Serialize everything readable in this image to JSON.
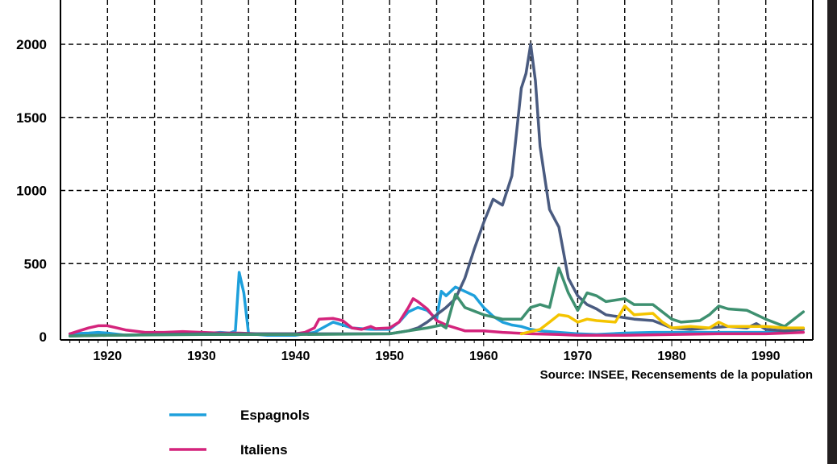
{
  "chart_data": {
    "type": "line",
    "source": "Source: INSEE, Recensements de la population",
    "xlim": [
      1915,
      1995
    ],
    "ylim": [
      0,
      2300
    ],
    "x_ticks": [
      1920,
      1930,
      1940,
      1950,
      1960,
      1970,
      1980,
      1990
    ],
    "y_ticks": [
      0,
      500,
      1000,
      1500,
      2000
    ],
    "grid": true,
    "legend_position": "bottom-left",
    "series": [
      {
        "name": "Espagnols",
        "color": "#1ea0dc",
        "points": [
          [
            1916,
            20
          ],
          [
            1918,
            25
          ],
          [
            1919,
            30
          ],
          [
            1920,
            25
          ],
          [
            1922,
            10
          ],
          [
            1925,
            15
          ],
          [
            1928,
            20
          ],
          [
            1930,
            20
          ],
          [
            1932,
            30
          ],
          [
            1933,
            25
          ],
          [
            1933.6,
            40
          ],
          [
            1934,
            440
          ],
          [
            1934.5,
            300
          ],
          [
            1935,
            20
          ],
          [
            1937,
            10
          ],
          [
            1940,
            10
          ],
          [
            1942,
            30
          ],
          [
            1944,
            100
          ],
          [
            1946,
            60
          ],
          [
            1948,
            50
          ],
          [
            1950,
            50
          ],
          [
            1951,
            100
          ],
          [
            1952,
            170
          ],
          [
            1953,
            200
          ],
          [
            1954,
            180
          ],
          [
            1955,
            120
          ],
          [
            1955.5,
            310
          ],
          [
            1956,
            280
          ],
          [
            1957,
            340
          ],
          [
            1958,
            310
          ],
          [
            1959,
            280
          ],
          [
            1960,
            200
          ],
          [
            1961,
            140
          ],
          [
            1962,
            100
          ],
          [
            1963,
            80
          ],
          [
            1964,
            70
          ],
          [
            1965,
            50
          ],
          [
            1966,
            40
          ],
          [
            1968,
            30
          ],
          [
            1970,
            20
          ],
          [
            1972,
            15
          ],
          [
            1975,
            25
          ],
          [
            1978,
            30
          ],
          [
            1980,
            30
          ],
          [
            1985,
            30
          ],
          [
            1990,
            30
          ],
          [
            1994,
            50
          ]
        ]
      },
      {
        "name": "Italiens",
        "color": "#d4247c",
        "points": [
          [
            1916,
            20
          ],
          [
            1917,
            40
          ],
          [
            1918,
            60
          ],
          [
            1919,
            75
          ],
          [
            1920,
            75
          ],
          [
            1921,
            60
          ],
          [
            1922,
            45
          ],
          [
            1924,
            30
          ],
          [
            1926,
            30
          ],
          [
            1928,
            35
          ],
          [
            1930,
            30
          ],
          [
            1932,
            25
          ],
          [
            1934,
            25
          ],
          [
            1936,
            20
          ],
          [
            1940,
            20
          ],
          [
            1941,
            30
          ],
          [
            1942,
            60
          ],
          [
            1942.5,
            120
          ],
          [
            1944,
            125
          ],
          [
            1945,
            110
          ],
          [
            1946,
            60
          ],
          [
            1947,
            50
          ],
          [
            1948,
            70
          ],
          [
            1948.5,
            55
          ],
          [
            1950,
            60
          ],
          [
            1951,
            100
          ],
          [
            1952,
            200
          ],
          [
            1952.5,
            260
          ],
          [
            1953,
            240
          ],
          [
            1954,
            190
          ],
          [
            1955,
            110
          ],
          [
            1956,
            80
          ],
          [
            1958,
            40
          ],
          [
            1960,
            40
          ],
          [
            1962,
            30
          ],
          [
            1965,
            20
          ],
          [
            1968,
            15
          ],
          [
            1970,
            10
          ],
          [
            1975,
            10
          ],
          [
            1980,
            15
          ],
          [
            1985,
            20
          ],
          [
            1990,
            20
          ],
          [
            1994,
            30
          ]
        ]
      },
      {
        "name": "",
        "color": "#4a5b80",
        "points": [
          [
            1916,
            5
          ],
          [
            1920,
            10
          ],
          [
            1930,
            20
          ],
          [
            1940,
            20
          ],
          [
            1950,
            20
          ],
          [
            1952,
            40
          ],
          [
            1953,
            60
          ],
          [
            1954,
            100
          ],
          [
            1955,
            150
          ],
          [
            1956,
            200
          ],
          [
            1957,
            260
          ],
          [
            1958,
            400
          ],
          [
            1959,
            600
          ],
          [
            1960,
            780
          ],
          [
            1961,
            940
          ],
          [
            1962,
            900
          ],
          [
            1963,
            1100
          ],
          [
            1964,
            1700
          ],
          [
            1964.5,
            1800
          ],
          [
            1965,
            2000
          ],
          [
            1965.5,
            1750
          ],
          [
            1966,
            1300
          ],
          [
            1967,
            870
          ],
          [
            1968,
            750
          ],
          [
            1969,
            400
          ],
          [
            1970,
            280
          ],
          [
            1971,
            220
          ],
          [
            1972,
            190
          ],
          [
            1973,
            150
          ],
          [
            1975,
            130
          ],
          [
            1976,
            120
          ],
          [
            1978,
            110
          ],
          [
            1980,
            60
          ],
          [
            1982,
            50
          ],
          [
            1984,
            60
          ],
          [
            1986,
            70
          ],
          [
            1988,
            60
          ],
          [
            1989,
            90
          ],
          [
            1990,
            50
          ],
          [
            1992,
            40
          ],
          [
            1994,
            50
          ]
        ]
      },
      {
        "name": "",
        "color": "#3e9070",
        "points": [
          [
            1916,
            5
          ],
          [
            1920,
            10
          ],
          [
            1930,
            15
          ],
          [
            1940,
            15
          ],
          [
            1950,
            20
          ],
          [
            1952,
            40
          ],
          [
            1954,
            60
          ],
          [
            1955.5,
            80
          ],
          [
            1956,
            60
          ],
          [
            1957,
            290
          ],
          [
            1958,
            200
          ],
          [
            1960,
            150
          ],
          [
            1962,
            120
          ],
          [
            1964,
            120
          ],
          [
            1965,
            200
          ],
          [
            1966,
            220
          ],
          [
            1967,
            200
          ],
          [
            1968,
            470
          ],
          [
            1969,
            300
          ],
          [
            1970,
            180
          ],
          [
            1971,
            300
          ],
          [
            1972,
            280
          ],
          [
            1973,
            240
          ],
          [
            1975,
            260
          ],
          [
            1976,
            220
          ],
          [
            1978,
            220
          ],
          [
            1980,
            120
          ],
          [
            1981,
            100
          ],
          [
            1983,
            110
          ],
          [
            1984,
            150
          ],
          [
            1985,
            210
          ],
          [
            1986,
            190
          ],
          [
            1988,
            180
          ],
          [
            1990,
            120
          ],
          [
            1992,
            70
          ],
          [
            1994,
            170
          ]
        ]
      },
      {
        "name": "",
        "color": "#f4c400",
        "points": [
          [
            1964,
            20
          ],
          [
            1966,
            50
          ],
          [
            1967,
            100
          ],
          [
            1968,
            150
          ],
          [
            1969,
            140
          ],
          [
            1970,
            100
          ],
          [
            1971,
            120
          ],
          [
            1972,
            110
          ],
          [
            1974,
            100
          ],
          [
            1975,
            210
          ],
          [
            1976,
            150
          ],
          [
            1978,
            160
          ],
          [
            1979,
            100
          ],
          [
            1980,
            60
          ],
          [
            1982,
            70
          ],
          [
            1984,
            60
          ],
          [
            1985,
            100
          ],
          [
            1986,
            70
          ],
          [
            1988,
            70
          ],
          [
            1990,
            70
          ],
          [
            1992,
            60
          ],
          [
            1994,
            60
          ]
        ]
      }
    ]
  }
}
